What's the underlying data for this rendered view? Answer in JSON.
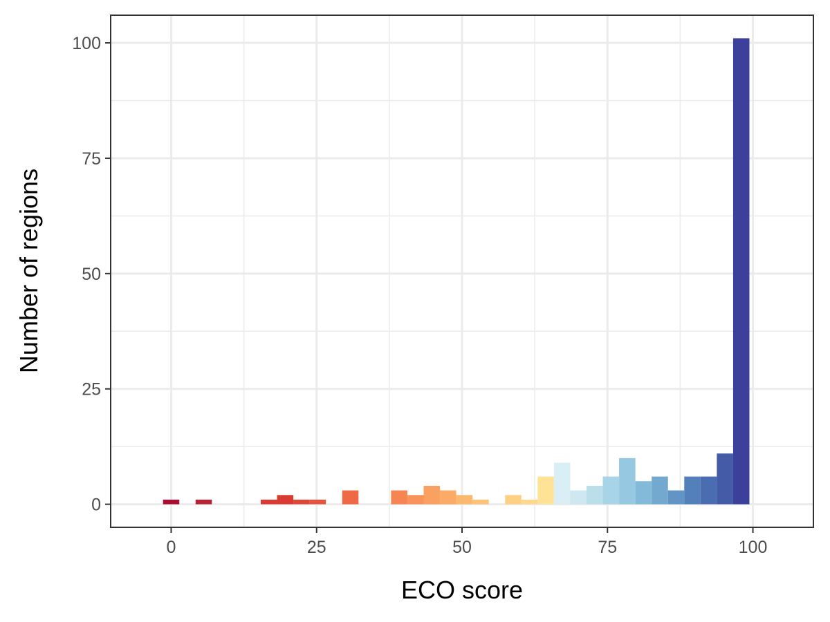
{
  "chart_data": {
    "type": "bar",
    "title": "",
    "xlabel": "ECO score",
    "ylabel": "Number of regions",
    "xlim": [
      -10.4,
      110.4
    ],
    "ylim": [
      -5,
      106
    ],
    "x_ticks": [
      0,
      25,
      50,
      75,
      100
    ],
    "y_ticks": [
      0,
      25,
      50,
      75,
      100
    ],
    "x_tick_labels": [
      "0",
      "25",
      "50",
      "75",
      "100"
    ],
    "y_tick_labels": [
      "0",
      "25",
      "50",
      "75",
      "100"
    ],
    "grid": true,
    "legend": "none",
    "bin_width": 2.8,
    "bins": [
      {
        "x": 0.0,
        "count": 1,
        "color": "#a50026"
      },
      {
        "x": 5.6,
        "count": 1,
        "color": "#b2182b"
      },
      {
        "x": 16.8,
        "count": 1,
        "color": "#d73027"
      },
      {
        "x": 19.6,
        "count": 2,
        "color": "#d73027"
      },
      {
        "x": 22.4,
        "count": 1,
        "color": "#dc3d2d"
      },
      {
        "x": 25.2,
        "count": 1,
        "color": "#e34a33"
      },
      {
        "x": 30.8,
        "count": 3,
        "color": "#ee613d"
      },
      {
        "x": 39.2,
        "count": 3,
        "color": "#f67e4b"
      },
      {
        "x": 42.0,
        "count": 2,
        "color": "#f88d52"
      },
      {
        "x": 44.8,
        "count": 4,
        "color": "#fa9b58"
      },
      {
        "x": 47.6,
        "count": 3,
        "color": "#fba75f"
      },
      {
        "x": 50.4,
        "count": 2,
        "color": "#fcb467"
      },
      {
        "x": 53.2,
        "count": 1,
        "color": "#fdbf6f"
      },
      {
        "x": 58.8,
        "count": 2,
        "color": "#fece7c"
      },
      {
        "x": 61.6,
        "count": 1,
        "color": "#fed687"
      },
      {
        "x": 64.4,
        "count": 6,
        "color": "#fee090"
      },
      {
        "x": 67.2,
        "count": 9,
        "color": "#d7edf4"
      },
      {
        "x": 70.0,
        "count": 3,
        "color": "#cbe6f0"
      },
      {
        "x": 72.8,
        "count": 4,
        "color": "#b7dcea"
      },
      {
        "x": 75.6,
        "count": 6,
        "color": "#a3d2e6"
      },
      {
        "x": 78.4,
        "count": 10,
        "color": "#90c5df"
      },
      {
        "x": 81.2,
        "count": 5,
        "color": "#7db6d7"
      },
      {
        "x": 84.0,
        "count": 6,
        "color": "#6ba3cc"
      },
      {
        "x": 86.8,
        "count": 3,
        "color": "#5a8fc2"
      },
      {
        "x": 89.6,
        "count": 6,
        "color": "#4a78b7"
      },
      {
        "x": 92.4,
        "count": 6,
        "color": "#4065ad"
      },
      {
        "x": 95.2,
        "count": 11,
        "color": "#3a52a3"
      },
      {
        "x": 98.0,
        "count": 101,
        "color": "#313695"
      }
    ]
  }
}
